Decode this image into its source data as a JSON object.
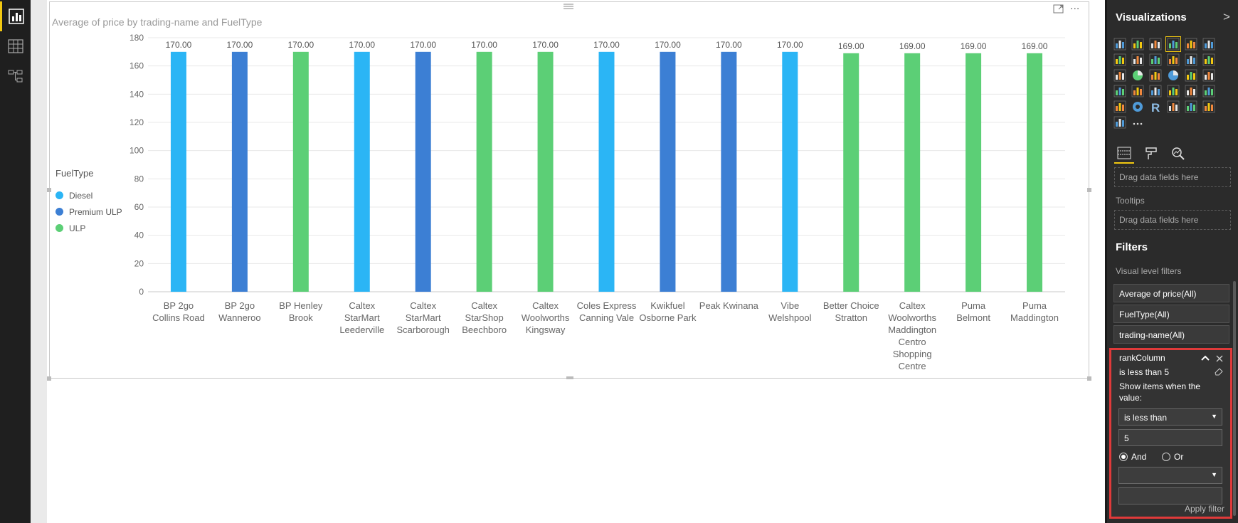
{
  "navigation": {
    "items": [
      {
        "name": "report-view",
        "icon": "bar-chart-icon"
      },
      {
        "name": "data-view",
        "icon": "table-icon"
      },
      {
        "name": "relationships-view",
        "icon": "relationships-icon"
      }
    ]
  },
  "visual": {
    "title": "Average of price by trading-name and FuelType"
  },
  "chart_data": {
    "type": "bar",
    "title": "Average of price by trading-name and FuelType",
    "xlabel": "",
    "ylabel": "",
    "ylim": [
      0,
      180
    ],
    "yticks": [
      "0",
      "20",
      "40",
      "60",
      "80",
      "100",
      "120",
      "140",
      "160",
      "180"
    ],
    "grid": true,
    "legend": {
      "title": "FuelType",
      "position": "left"
    },
    "series": [
      {
        "name": "Diesel",
        "color": "#2bb5f5"
      },
      {
        "name": "Premium ULP",
        "color": "#3c7fd4"
      },
      {
        "name": "ULP",
        "color": "#5ccf76"
      }
    ],
    "bars": [
      {
        "category": [
          "BP 2go",
          "Collins Road"
        ],
        "series": "Diesel",
        "value": 170.0,
        "label": "170.00"
      },
      {
        "category": [
          "BP 2go",
          "Wanneroo"
        ],
        "series": "Premium ULP",
        "value": 170.0,
        "label": "170.00"
      },
      {
        "category": [
          "BP Henley",
          "Brook"
        ],
        "series": "ULP",
        "value": 170.0,
        "label": "170.00"
      },
      {
        "category": [
          "Caltex",
          "StarMart",
          "Leederville"
        ],
        "series": "Diesel",
        "value": 170.0,
        "label": "170.00"
      },
      {
        "category": [
          "Caltex",
          "StarMart",
          "Scarborough"
        ],
        "series": "Premium ULP",
        "value": 170.0,
        "label": "170.00"
      },
      {
        "category": [
          "Caltex",
          "StarShop",
          "Beechboro"
        ],
        "series": "ULP",
        "value": 170.0,
        "label": "170.00"
      },
      {
        "category": [
          "Caltex",
          "Woolworths",
          "Kingsway"
        ],
        "series": "ULP",
        "value": 170.0,
        "label": "170.00"
      },
      {
        "category": [
          "Coles Express",
          "Canning Vale"
        ],
        "series": "Diesel",
        "value": 170.0,
        "label": "170.00"
      },
      {
        "category": [
          "Kwikfuel",
          "Osborne Park"
        ],
        "series": "Premium ULP",
        "value": 170.0,
        "label": "170.00"
      },
      {
        "category": [
          "Peak Kwinana"
        ],
        "series": "Premium ULP",
        "value": 170.0,
        "label": "170.00"
      },
      {
        "category": [
          "Vibe",
          "Welshpool"
        ],
        "series": "Diesel",
        "value": 170.0,
        "label": "170.00"
      },
      {
        "category": [
          "Better Choice",
          "Stratton"
        ],
        "series": "ULP",
        "value": 169.0,
        "label": "169.00"
      },
      {
        "category": [
          "Caltex",
          "Woolworths",
          "Maddington",
          "Centro",
          "Shopping",
          "Centre"
        ],
        "series": "ULP",
        "value": 169.0,
        "label": "169.00"
      },
      {
        "category": [
          "Puma",
          "Belmont"
        ],
        "series": "ULP",
        "value": 169.0,
        "label": "169.00"
      },
      {
        "category": [
          "Puma",
          "Maddington"
        ],
        "series": "ULP",
        "value": 169.0,
        "label": "169.00"
      }
    ]
  },
  "pane": {
    "visualizations_title": "Visualizations",
    "chevron": ">",
    "drop_hint_1": "Drag data fields here",
    "tooltips_label": "Tooltips",
    "drop_hint_2": "Drag data fields here",
    "filters_title": "Filters",
    "visual_level_filters": "Visual level filters",
    "filter_chips": [
      "Average of price(All)",
      "FuelType(All)",
      "trading-name(All)"
    ],
    "more": "..."
  },
  "rank_filter": {
    "field": "rankColumn",
    "summary": "is less than 5",
    "show_items": "Show items when the",
    "show_items_2": "value:",
    "condition": "is less than",
    "value": "5",
    "and_label": "And",
    "or_label": "Or",
    "second_condition": "",
    "second_value": "",
    "apply_label": "Apply filter"
  }
}
